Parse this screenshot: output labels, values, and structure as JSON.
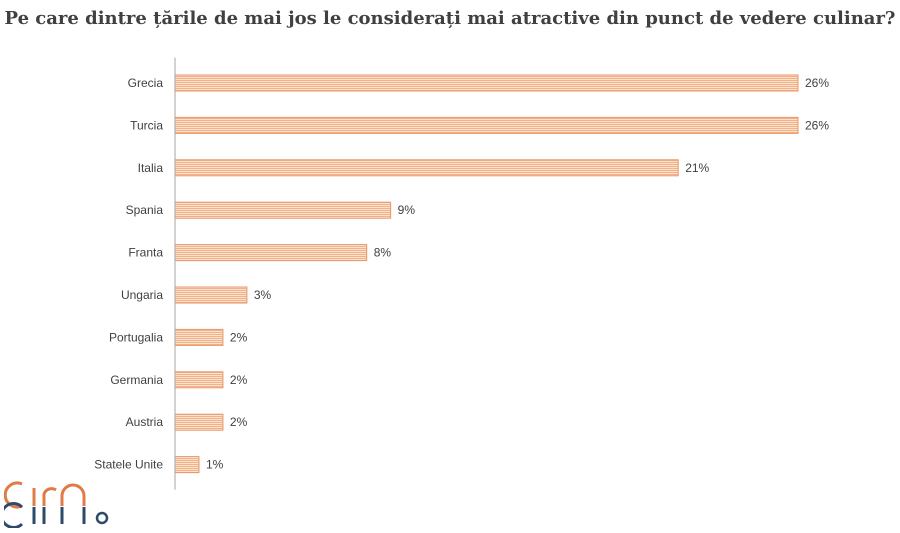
{
  "title": "Pe care dintre țările de mai jos le considerați mai atractive din punct de vedere culinar?",
  "colors": {
    "bar_fill": "#f4b183",
    "bar_stripe": "#fbe3d3",
    "bar_edge": "#e8956b",
    "axis": "#a6a6a6",
    "text": "#404040",
    "logo_orange": "#e07b45",
    "logo_blue": "#2e4a6b"
  },
  "logo": {
    "text": "cira"
  },
  "chart_data": {
    "type": "bar",
    "orientation": "horizontal",
    "title": "Pe care dintre țările de mai jos le considerați mai atractive din punct de vedere culinar?",
    "xlabel": "",
    "ylabel": "",
    "unit": "%",
    "xlim": [
      0,
      26
    ],
    "grid": false,
    "categories": [
      "Grecia",
      "Turcia",
      "Italia",
      "Spania",
      "Franta",
      "Ungaria",
      "Portugalia",
      "Germania",
      "Austria",
      "Statele Unite"
    ],
    "values": [
      26,
      26,
      21,
      9,
      8,
      3,
      2,
      2,
      2,
      1
    ],
    "labels": [
      "26%",
      "26%",
      "21%",
      "9%",
      "8%",
      "3%",
      "2%",
      "2%",
      "2%",
      "1%"
    ]
  }
}
